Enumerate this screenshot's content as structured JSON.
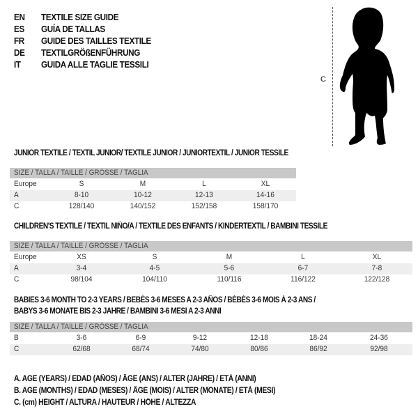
{
  "header": {
    "languages": [
      {
        "code": "EN",
        "title": "TEXTILE SIZE GUIDE"
      },
      {
        "code": "ES",
        "title": "GUÍA DE TALLAS"
      },
      {
        "code": "FR",
        "title": "GUIDE DES TAILLES TEXTILE"
      },
      {
        "code": "DE",
        "title": "TEXTILGRÖßENFÜHRUNG"
      },
      {
        "code": "IT",
        "title": "GUIDA ALLE TAGLIE TESSILI"
      }
    ]
  },
  "figure": {
    "measure_label": "C",
    "icon": "child-silhouette"
  },
  "tables": [
    {
      "title": [
        "JUNIOR TEXTILE / TEXTIL JUNIOR/ TEXTILE JUNIOR / JUNIORTEXTIL / JUNIOR TESSILE"
      ],
      "header": "SIZE / TALLA / TAILLE / GRÖSSE / TAGLIA",
      "rows": [
        {
          "label": "Europe",
          "values": [
            "S",
            "M",
            "L",
            "XL"
          ]
        },
        {
          "label": "A",
          "values": [
            "8-10",
            "10-12",
            "12-13",
            "14-16"
          ]
        },
        {
          "label": "C",
          "values": [
            "128/140",
            "140/152",
            "152/158",
            "158/170"
          ]
        }
      ]
    },
    {
      "title": [
        "CHILDREN'S TEXTILE / TEXTIL NIÑO/A / TEXTILE DES ENFANTS / KINDERTEXTIL / BAMBINI TESSILE"
      ],
      "header": "SIZE / TALLA / TAILLE / GRÖSSE / TAGLIA",
      "rows": [
        {
          "label": "Europe",
          "values": [
            "XS",
            "S",
            "M",
            "L",
            "XL"
          ]
        },
        {
          "label": "A",
          "values": [
            "3-4",
            "4-5",
            "5-6",
            "6-7",
            "7-8"
          ]
        },
        {
          "label": "C",
          "values": [
            "98/104",
            "104/110",
            "110/116",
            "116/122",
            "122/128"
          ]
        }
      ]
    },
    {
      "title": [
        "BABIES 3-6 MONTH TO 2-3 YEARS / BEBÉS 3-6 MESES A 2-3 AÑOS / BÉBÉS 3-6 MOIS À 2-3 ANS /",
        "BABYS 3-6 MONATE BIS 2-3 JAHRE / BAMBINI 3-6 MESI A 2-3 ANNI"
      ],
      "header": "SIZE / TALLA / TAILLE / GRÖSSE / TAGLIA",
      "rows": [
        {
          "label": "B",
          "values": [
            "3-6",
            "6-9",
            "9-12",
            "12-18",
            "18-24",
            "24-36"
          ]
        },
        {
          "label": "C",
          "values": [
            "62/68",
            "68/74",
            "74/80",
            "80/86",
            "86/92",
            "92/98"
          ]
        }
      ]
    }
  ],
  "legend": [
    "A. AGE (YEARS) / EDAD (AÑOS) / ÂGE (ANS) / ALTER (JAHRE) / ETÀ (ANNI)",
    "B. AGE (MONTHS) / EDAD (MESES) / ÂGE (MOIS) / ALTER (MONATE) / ETÀ (MESI)",
    "C. (cm) HEIGHT / ALTURA / HAUTEUR / HÖHE / ALTEZZA"
  ],
  "colors": {
    "header_row": "#c8c8c8",
    "alt_row": "#eeeeee",
    "text": "#111111"
  }
}
